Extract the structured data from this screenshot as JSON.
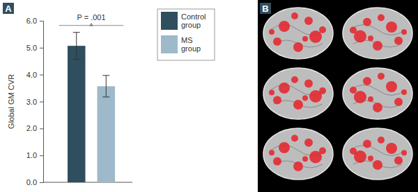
{
  "chart_data": {
    "type": "bar",
    "panel_label": "A",
    "categories": [
      null
    ],
    "series": [
      {
        "name": "Control group",
        "color": "#2f4f5f",
        "values": [
          5.07
        ],
        "errors": [
          0.5
        ]
      },
      {
        "name": "MS group",
        "color": "#9eb9c9",
        "values": [
          3.57
        ],
        "errors": [
          0.4
        ]
      }
    ],
    "y_label": "Global GM CVR",
    "annotation": "P = .001",
    "ylim": [
      0,
      6
    ],
    "yticks": [
      {
        "value": 0,
        "label": "0.0"
      },
      {
        "value": 1,
        "label": "1.0"
      },
      {
        "value": 2,
        "label": "2.0"
      },
      {
        "value": 3,
        "label": "3.0"
      },
      {
        "value": 4,
        "label": "4.0"
      },
      {
        "value": 5,
        "label": "5.0"
      },
      {
        "value": 6,
        "label": "6.0"
      }
    ],
    "grid": false,
    "legend": "upper right",
    "tick_labels": "y"
  },
  "image_panel": {
    "label": "B"
  }
}
